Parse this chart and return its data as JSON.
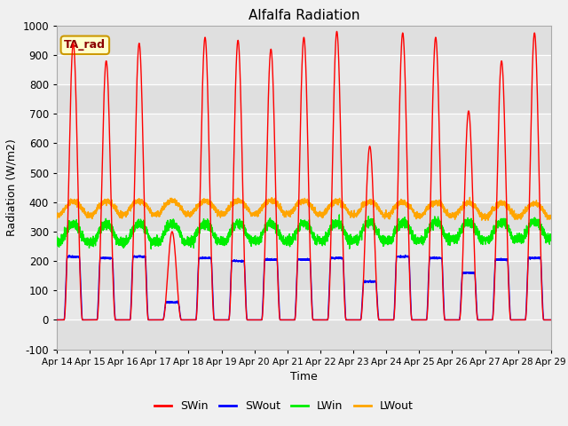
{
  "title": "Alfalfa Radiation",
  "xlabel": "Time",
  "ylabel": "Radiation (W/m2)",
  "ylim": [
    -100,
    1000
  ],
  "xlim": [
    0,
    15
  ],
  "fig_bg": "#f0f0f0",
  "plot_bg": "#e8e8e8",
  "grid_color": "white",
  "xtick_labels": [
    "Apr 14",
    "Apr 15",
    "Apr 16",
    "Apr 17",
    "Apr 18",
    "Apr 19",
    "Apr 20",
    "Apr 21",
    "Apr 22",
    "Apr 23",
    "Apr 24",
    "Apr 25",
    "Apr 26",
    "Apr 27",
    "Apr 28",
    "Apr 29"
  ],
  "ytick_values": [
    -100,
    0,
    100,
    200,
    300,
    400,
    500,
    600,
    700,
    800,
    900,
    1000
  ],
  "annotation_text": "TA_rad",
  "annotation_bg": "#ffffcc",
  "annotation_border": "#cc9900",
  "colors": {
    "SWin": "red",
    "SWout": "blue",
    "LWin": "#00ee00",
    "LWout": "orange"
  },
  "peaks_SWin": [
    940,
    880,
    940,
    300,
    960,
    950,
    920,
    960,
    980,
    590,
    975,
    960,
    710,
    880,
    975
  ],
  "peaks_SWout": [
    215,
    210,
    215,
    60,
    210,
    200,
    205,
    205,
    210,
    130,
    215,
    210,
    160,
    205,
    210
  ]
}
